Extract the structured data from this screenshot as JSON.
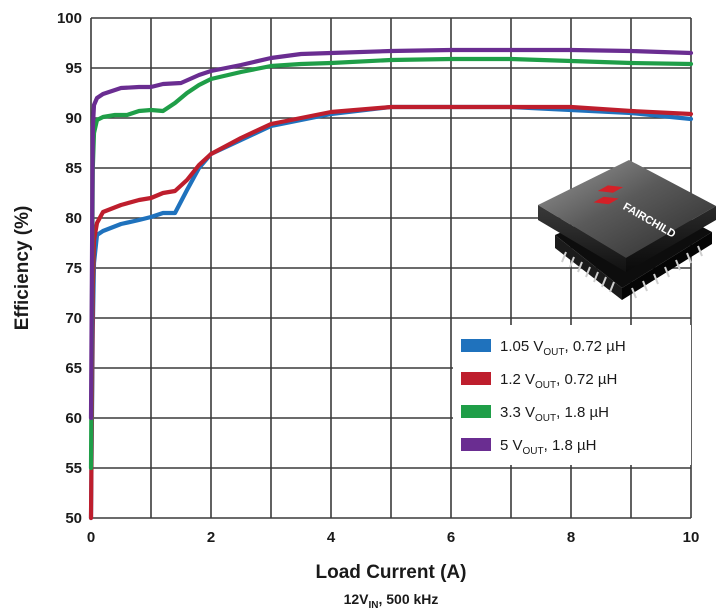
{
  "chart_data": {
    "type": "line",
    "xlabel": "Load Current (A)",
    "ylabel": "Efficiency (%)",
    "caption": {
      "main": "12V",
      "sub": "IN",
      "rest": ", 500 kHz"
    },
    "xlim": [
      0,
      10
    ],
    "ylim": [
      50,
      100
    ],
    "xticks": [
      "0",
      "2",
      "4",
      "6",
      "8",
      "10"
    ],
    "yticks": [
      "50",
      "55",
      "60",
      "65",
      "70",
      "75",
      "80",
      "85",
      "90",
      "95",
      "100"
    ],
    "grid": true,
    "legend_position": "bottom-right",
    "logo_text": "FAIRCHILD",
    "series": [
      {
        "name": "1.05 V_OUT, 0.72 µH",
        "legend": {
          "pre": "1.05 V",
          "sub": "OUT",
          "post": ", 0.72 µH"
        },
        "color": "#1f72bd",
        "x": [
          0,
          0.03,
          0.05,
          0.1,
          0.2,
          0.5,
          0.8,
          1.0,
          1.2,
          1.4,
          1.6,
          1.8,
          2.0,
          2.5,
          3.0,
          4.0,
          5.0,
          6.0,
          7.0,
          8.0,
          9.0,
          10.0
        ],
        "y": [
          50,
          69,
          75.5,
          78.3,
          78.7,
          79.4,
          79.8,
          80.1,
          80.5,
          80.5,
          82.8,
          85.0,
          86.4,
          87.8,
          89.2,
          90.4,
          91.1,
          91.1,
          91.1,
          90.8,
          90.5,
          89.9
        ]
      },
      {
        "name": "1.2 V_OUT, 0.72 µH",
        "legend": {
          "pre": "1.2 V",
          "sub": "OUT",
          "post": ", 0.72 µH"
        },
        "color": "#be1e2d",
        "x": [
          0,
          0.03,
          0.05,
          0.1,
          0.2,
          0.5,
          0.8,
          1.0,
          1.2,
          1.4,
          1.6,
          1.8,
          2.0,
          2.5,
          3.0,
          4.0,
          5.0,
          6.0,
          7.0,
          8.0,
          9.0,
          10.0
        ],
        "y": [
          50,
          73,
          77.8,
          79.5,
          80.6,
          81.3,
          81.8,
          82.0,
          82.5,
          82.7,
          83.8,
          85.3,
          86.4,
          88.0,
          89.4,
          90.6,
          91.1,
          91.1,
          91.1,
          91.1,
          90.7,
          90.4
        ]
      },
      {
        "name": "3.3 V_OUT, 1.8 µH",
        "legend": {
          "pre": "3.3 V",
          "sub": "OUT",
          "post": ", 1.8 µH"
        },
        "color": "#1f9e48",
        "x": [
          0,
          0.03,
          0.05,
          0.1,
          0.2,
          0.4,
          0.6,
          0.8,
          1.0,
          1.2,
          1.4,
          1.6,
          1.8,
          2.0,
          2.5,
          3.0,
          3.5,
          4.0,
          5.0,
          6.0,
          7.0,
          8.0,
          9.0,
          10.0
        ],
        "y": [
          55,
          85,
          88.5,
          89.8,
          90.1,
          90.3,
          90.3,
          90.7,
          90.8,
          90.7,
          91.5,
          92.5,
          93.3,
          93.9,
          94.6,
          95.2,
          95.4,
          95.5,
          95.8,
          95.9,
          95.9,
          95.7,
          95.5,
          95.4
        ]
      },
      {
        "name": "5 V_OUT, 1.8 µH",
        "legend": {
          "pre": "5 V",
          "sub": "OUT",
          "post": ", 1.8 µH"
        },
        "color": "#6a2d91",
        "x": [
          0,
          0.03,
          0.05,
          0.1,
          0.2,
          0.5,
          0.8,
          1.0,
          1.2,
          1.5,
          1.8,
          2.0,
          2.5,
          3.0,
          3.5,
          4.0,
          5.0,
          6.0,
          7.0,
          8.0,
          9.0,
          10.0
        ],
        "y": [
          60,
          89,
          91.3,
          92.0,
          92.4,
          93.0,
          93.1,
          93.1,
          93.4,
          93.5,
          94.3,
          94.7,
          95.3,
          96.0,
          96.4,
          96.5,
          96.7,
          96.8,
          96.8,
          96.8,
          96.7,
          96.5
        ]
      }
    ]
  }
}
